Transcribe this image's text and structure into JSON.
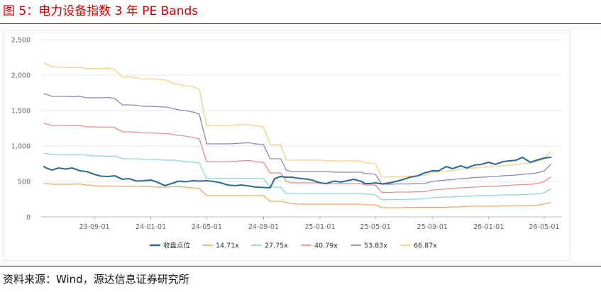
{
  "figure": {
    "title": "图 5：电力设备指数 3 年 PE Bands"
  },
  "source": {
    "text": "资料来源：Wind，源达信息证券研究所"
  },
  "chart_data": {
    "type": "line",
    "title": "",
    "xlabel": "",
    "ylabel": "",
    "ylim": [
      0,
      2500
    ],
    "y_ticks": [
      "2,500",
      "2,000",
      "1,500",
      "1,000",
      "500",
      "0"
    ],
    "x_ticks": [
      "23-09-01",
      "24-01-01",
      "24-05-01",
      "24-09-01",
      "25-01-01",
      "25-05-01",
      "25-09-01",
      "26-01-01",
      "26-05-01"
    ],
    "grid": "horizontal",
    "legend_position": "bottom",
    "x": [
      "2023-05-15",
      "2023-05-20",
      "2023-06-01",
      "2023-06-15",
      "2023-07-01",
      "2023-07-15",
      "2023-08-01",
      "2023-08-15",
      "2023-09-01",
      "2023-09-15",
      "2023-10-01",
      "2023-10-15",
      "2023-11-01",
      "2023-11-15",
      "2023-12-01",
      "2023-12-15",
      "2024-01-01",
      "2024-01-15",
      "2024-02-01",
      "2024-02-05",
      "2024-02-20",
      "2024-03-01",
      "2024-03-15",
      "2024-04-01",
      "2024-04-15",
      "2024-05-01",
      "2024-05-15",
      "2024-06-01",
      "2024-06-15",
      "2024-07-01",
      "2024-07-15",
      "2024-08-01",
      "2024-08-15",
      "2024-09-01",
      "2024-09-15",
      "2024-09-25",
      "2024-10-08",
      "2024-10-20",
      "2024-11-01",
      "2024-11-15",
      "2024-12-01",
      "2024-12-15",
      "2025-01-01",
      "2025-01-15",
      "2025-02-01",
      "2025-02-15",
      "2025-03-01",
      "2025-03-15",
      "2025-04-01",
      "2025-04-08",
      "2025-04-20",
      "2025-05-01",
      "2025-05-15",
      "2025-06-01",
      "2025-06-15",
      "2025-07-01",
      "2025-07-15",
      "2025-08-01",
      "2025-08-15",
      "2025-09-01",
      "2025-09-15",
      "2025-10-01",
      "2025-10-15",
      "2025-11-01",
      "2025-11-15",
      "2025-12-01",
      "2025-12-15",
      "2026-01-01",
      "2026-01-15",
      "2026-02-01",
      "2026-02-15",
      "2026-03-01",
      "2026-03-15",
      "2026-04-01",
      "2026-04-15",
      "2026-05-01",
      "2026-05-15"
    ],
    "series": [
      {
        "name": "收盘点位",
        "color": "#2f6b8f",
        "values": [
          710,
          690,
          660,
          690,
          675,
          690,
          650,
          640,
          600,
          575,
          570,
          580,
          530,
          540,
          505,
          510,
          520,
          490,
          440,
          450,
          480,
          505,
          495,
          510,
          505,
          510,
          500,
          480,
          450,
          440,
          450,
          435,
          420,
          415,
          410,
          540,
          570,
          560,
          560,
          545,
          535,
          520,
          480,
          470,
          505,
          490,
          510,
          530,
          500,
          470,
          470,
          480,
          465,
          480,
          500,
          530,
          560,
          580,
          620,
          650,
          650,
          710,
          680,
          720,
          690,
          730,
          740,
          770,
          740,
          780,
          790,
          800,
          840,
          770,
          800,
          830,
          840
        ]
      },
      {
        "name": "14.71x",
        "color": "#f2a36b",
        "values": [
          470,
          470,
          460,
          460,
          460,
          460,
          465,
          450,
          440,
          435,
          435,
          435,
          430,
          430,
          430,
          430,
          425,
          420,
          420,
          420,
          425,
          425,
          420,
          410,
          400,
          300,
          300,
          300,
          300,
          300,
          300,
          300,
          300,
          300,
          220,
          220,
          220,
          200,
          185,
          180,
          180,
          180,
          180,
          180,
          180,
          180,
          180,
          180,
          180,
          170,
          170,
          170,
          130,
          130,
          130,
          130,
          135,
          135,
          135,
          135,
          135,
          135,
          140,
          140,
          150,
          150,
          150,
          150,
          150,
          155,
          155,
          160,
          160,
          160,
          165,
          180,
          200
        ]
      },
      {
        "name": "27.75x",
        "color": "#8ed6cf",
        "values": [
          900,
          895,
          880,
          880,
          875,
          875,
          880,
          870,
          860,
          860,
          855,
          860,
          820,
          820,
          820,
          815,
          810,
          810,
          800,
          800,
          800,
          790,
          785,
          770,
          760,
          540,
          540,
          545,
          545,
          545,
          545,
          545,
          545,
          540,
          420,
          420,
          420,
          330,
          335,
          330,
          330,
          330,
          330,
          330,
          330,
          330,
          330,
          330,
          330,
          320,
          320,
          310,
          240,
          245,
          245,
          245,
          250,
          250,
          255,
          270,
          275,
          280,
          280,
          290,
          290,
          295,
          300,
          300,
          305,
          310,
          310,
          310,
          315,
          320,
          325,
          340,
          390
        ]
      },
      {
        "name": "40.79x",
        "color": "#ef8a8a",
        "values": [
          1320,
          1310,
          1290,
          1290,
          1290,
          1285,
          1290,
          1270,
          1270,
          1265,
          1270,
          1260,
          1200,
          1200,
          1195,
          1185,
          1185,
          1180,
          1175,
          1175,
          1160,
          1150,
          1140,
          1120,
          1100,
          780,
          780,
          780,
          780,
          785,
          790,
          795,
          780,
          770,
          620,
          620,
          620,
          500,
          480,
          480,
          480,
          480,
          480,
          470,
          470,
          470,
          470,
          470,
          470,
          450,
          450,
          450,
          345,
          345,
          350,
          350,
          350,
          355,
          355,
          380,
          385,
          395,
          400,
          410,
          415,
          420,
          425,
          430,
          430,
          440,
          445,
          450,
          455,
          460,
          470,
          500,
          560
        ]
      },
      {
        "name": "53.83x",
        "color": "#8d87b8",
        "values": [
          1740,
          1730,
          1700,
          1700,
          1700,
          1695,
          1700,
          1680,
          1680,
          1680,
          1685,
          1670,
          1580,
          1580,
          1575,
          1560,
          1560,
          1555,
          1550,
          1550,
          1525,
          1510,
          1500,
          1480,
          1450,
          1030,
          1030,
          1030,
          1030,
          1035,
          1040,
          1045,
          1030,
          1020,
          820,
          820,
          820,
          660,
          640,
          640,
          640,
          640,
          640,
          640,
          630,
          630,
          630,
          630,
          630,
          610,
          610,
          600,
          460,
          460,
          465,
          465,
          465,
          470,
          470,
          500,
          510,
          520,
          525,
          540,
          545,
          555,
          560,
          565,
          570,
          580,
          585,
          590,
          600,
          610,
          620,
          650,
          740
        ]
      },
      {
        "name": "66.87x",
        "color": "#f6cf84",
        "values": [
          2170,
          2160,
          2120,
          2110,
          2110,
          2105,
          2110,
          2090,
          2095,
          2090,
          2100,
          2080,
          1970,
          1975,
          1960,
          1940,
          1950,
          1940,
          1930,
          1925,
          1880,
          1870,
          1850,
          1840,
          1800,
          1290,
          1285,
          1290,
          1290,
          1295,
          1300,
          1305,
          1285,
          1270,
          1020,
          1020,
          1020,
          800,
          800,
          800,
          800,
          800,
          800,
          795,
          790,
          790,
          790,
          790,
          785,
          760,
          760,
          750,
          560,
          565,
          570,
          570,
          575,
          580,
          585,
          625,
          635,
          645,
          650,
          675,
          680,
          690,
          700,
          705,
          710,
          720,
          730,
          740,
          750,
          760,
          780,
          820,
          920
        ]
      }
    ]
  }
}
